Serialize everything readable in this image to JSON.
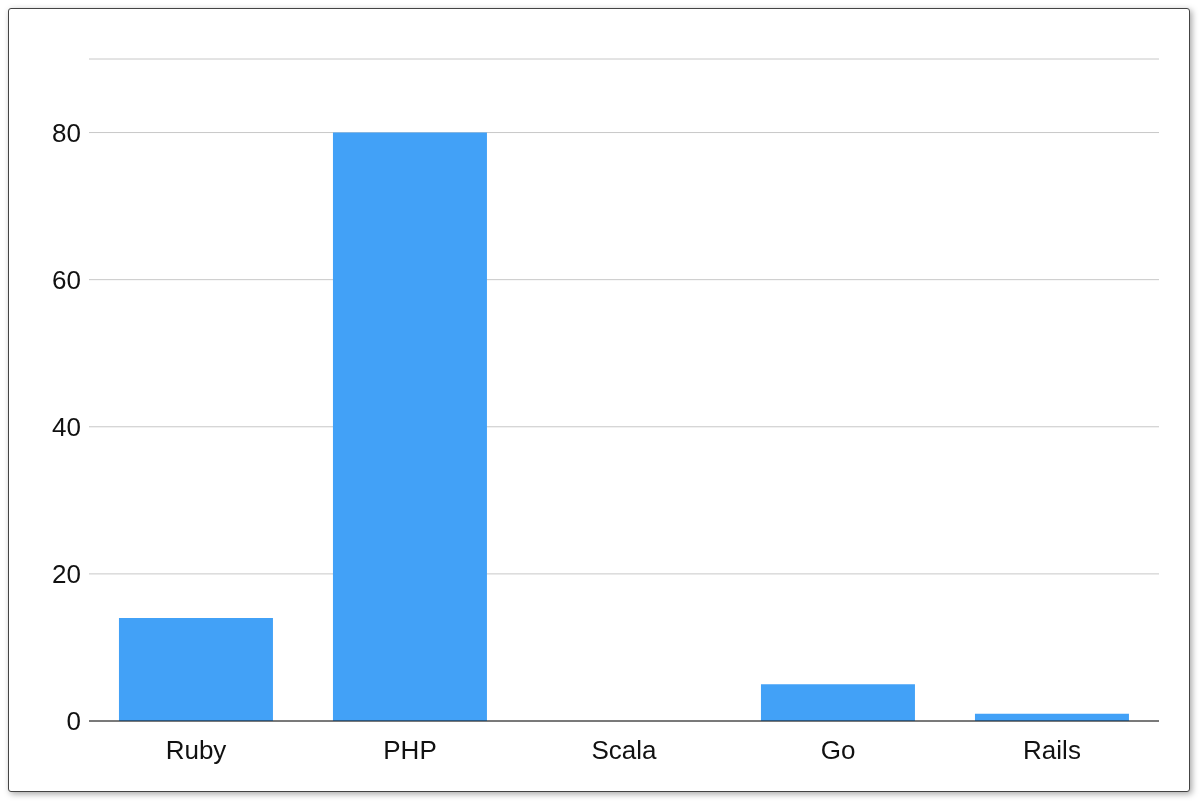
{
  "chart_data": {
    "type": "bar",
    "categories": [
      "Ruby",
      "PHP",
      "Scala",
      "Go",
      "Rails"
    ],
    "values": [
      14,
      80,
      0,
      5,
      1
    ],
    "color": "#42a1f7",
    "ylim": [
      0,
      90
    ],
    "yticks": [
      0,
      20,
      40,
      60,
      80
    ],
    "grid": "y",
    "legend": false
  }
}
